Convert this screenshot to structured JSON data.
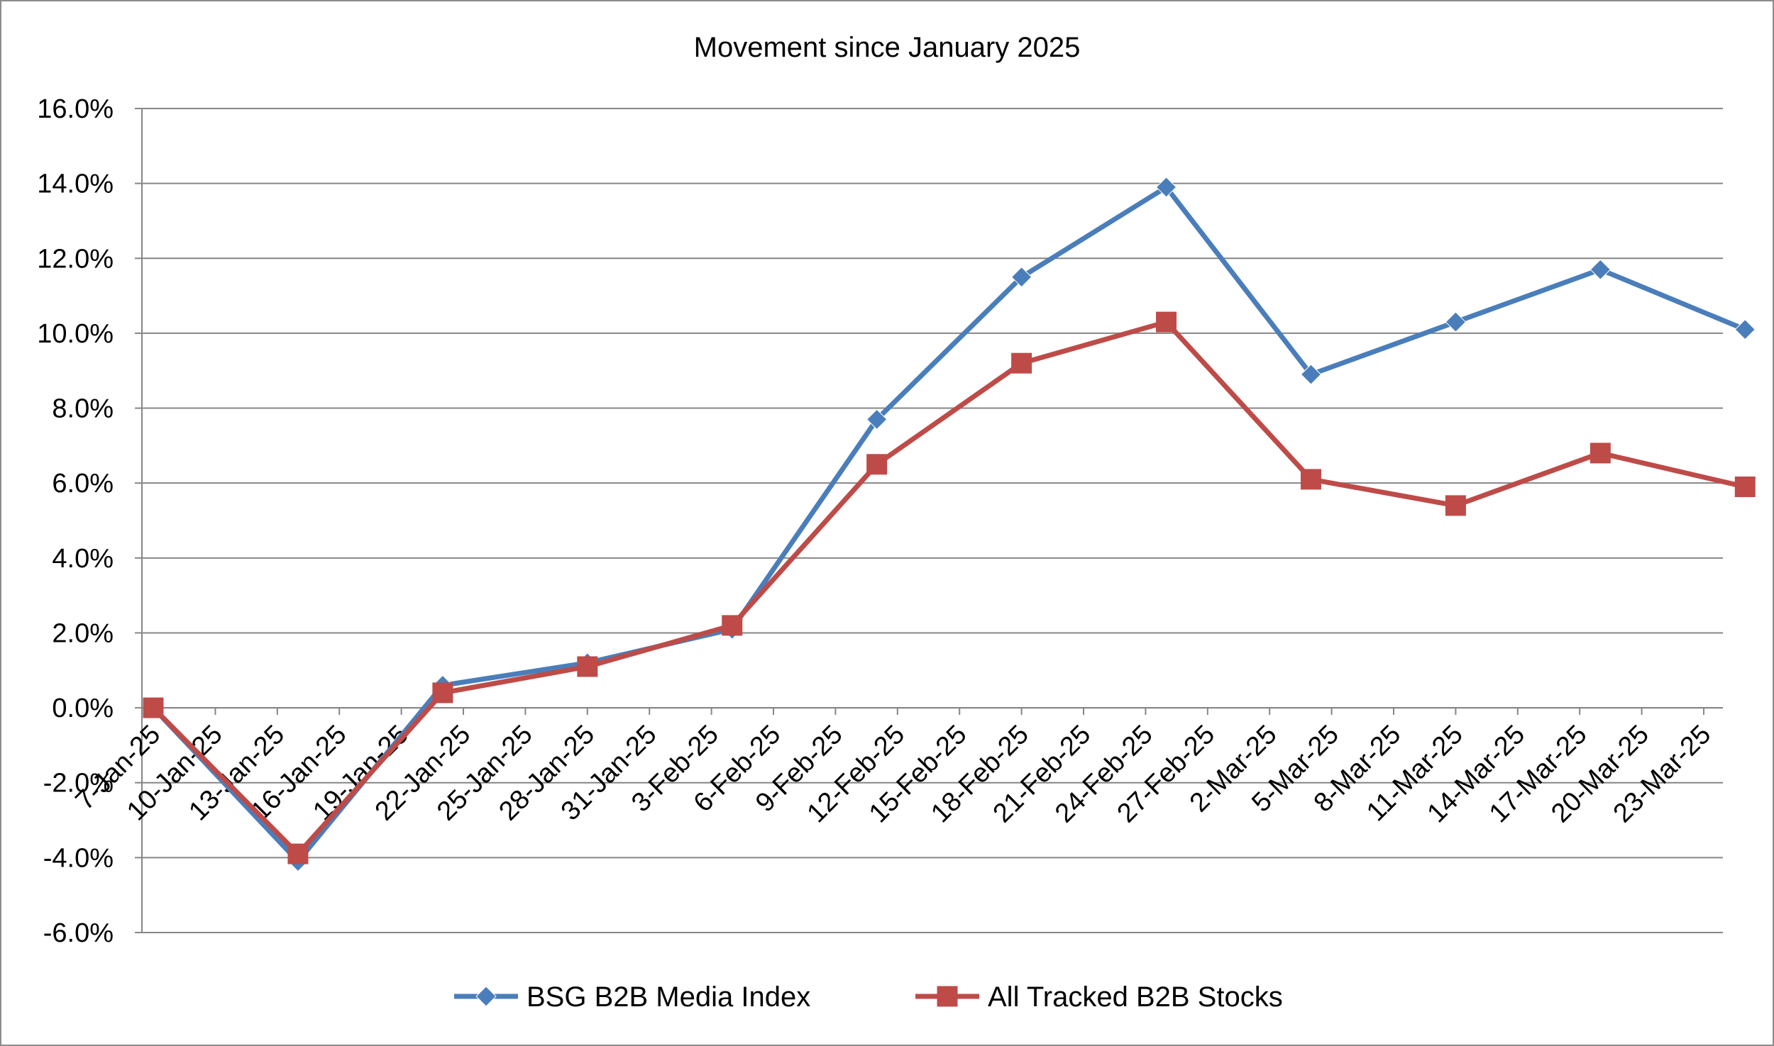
{
  "chart_data": {
    "type": "line",
    "title": "Movement since January 2025",
    "xlabel": "",
    "ylabel": "",
    "ylim": [
      -6.0,
      16.0
    ],
    "y_ticks": [
      "16.0%",
      "14.0%",
      "12.0%",
      "10.0%",
      "8.0%",
      "6.0%",
      "4.0%",
      "2.0%",
      "0.0%",
      "-2.0%",
      "-4.0%",
      "-6.0%"
    ],
    "x_ticks": [
      "7-Jan-25",
      "10-Jan-25",
      "13-Jan-25",
      "16-Jan-25",
      "19-Jan-25",
      "22-Jan-25",
      "25-Jan-25",
      "28-Jan-25",
      "31-Jan-25",
      "3-Feb-25",
      "6-Feb-25",
      "9-Feb-25",
      "12-Feb-25",
      "15-Feb-25",
      "18-Feb-25",
      "21-Feb-25",
      "24-Feb-25",
      "27-Feb-25",
      "2-Mar-25",
      "5-Mar-25",
      "8-Mar-25",
      "11-Mar-25",
      "14-Mar-25",
      "17-Mar-25",
      "20-Mar-25",
      "23-Mar-25"
    ],
    "x_range": [
      "2025-01-07",
      "2025-03-25"
    ],
    "grid": true,
    "legend": "bottom",
    "series": [
      {
        "name": "BSG B2B Media Index",
        "color": "#4a7ebb",
        "marker": "diamond",
        "points": [
          {
            "x": "2025-01-07",
            "y": 0.0
          },
          {
            "x": "2025-01-14",
            "y": -4.1
          },
          {
            "x": "2025-01-21",
            "y": 0.6
          },
          {
            "x": "2025-01-28",
            "y": 1.2
          },
          {
            "x": "2025-02-04",
            "y": 2.1
          },
          {
            "x": "2025-02-11",
            "y": 7.7
          },
          {
            "x": "2025-02-18",
            "y": 11.5
          },
          {
            "x": "2025-02-25",
            "y": 13.9
          },
          {
            "x": "2025-03-04",
            "y": 8.9
          },
          {
            "x": "2025-03-11",
            "y": 10.3
          },
          {
            "x": "2025-03-18",
            "y": 11.7
          },
          {
            "x": "2025-03-25",
            "y": 10.1
          }
        ]
      },
      {
        "name": "All Tracked B2B Stocks",
        "color": "#be4b48",
        "marker": "square",
        "points": [
          {
            "x": "2025-01-07",
            "y": 0.0
          },
          {
            "x": "2025-01-14",
            "y": -3.9
          },
          {
            "x": "2025-01-21",
            "y": 0.4
          },
          {
            "x": "2025-01-28",
            "y": 1.1
          },
          {
            "x": "2025-02-04",
            "y": 2.2
          },
          {
            "x": "2025-02-11",
            "y": 6.5
          },
          {
            "x": "2025-02-18",
            "y": 9.2
          },
          {
            "x": "2025-02-25",
            "y": 10.3
          },
          {
            "x": "2025-03-04",
            "y": 6.1
          },
          {
            "x": "2025-03-11",
            "y": 5.4
          },
          {
            "x": "2025-03-18",
            "y": 6.8
          },
          {
            "x": "2025-03-25",
            "y": 5.9
          }
        ]
      }
    ]
  }
}
